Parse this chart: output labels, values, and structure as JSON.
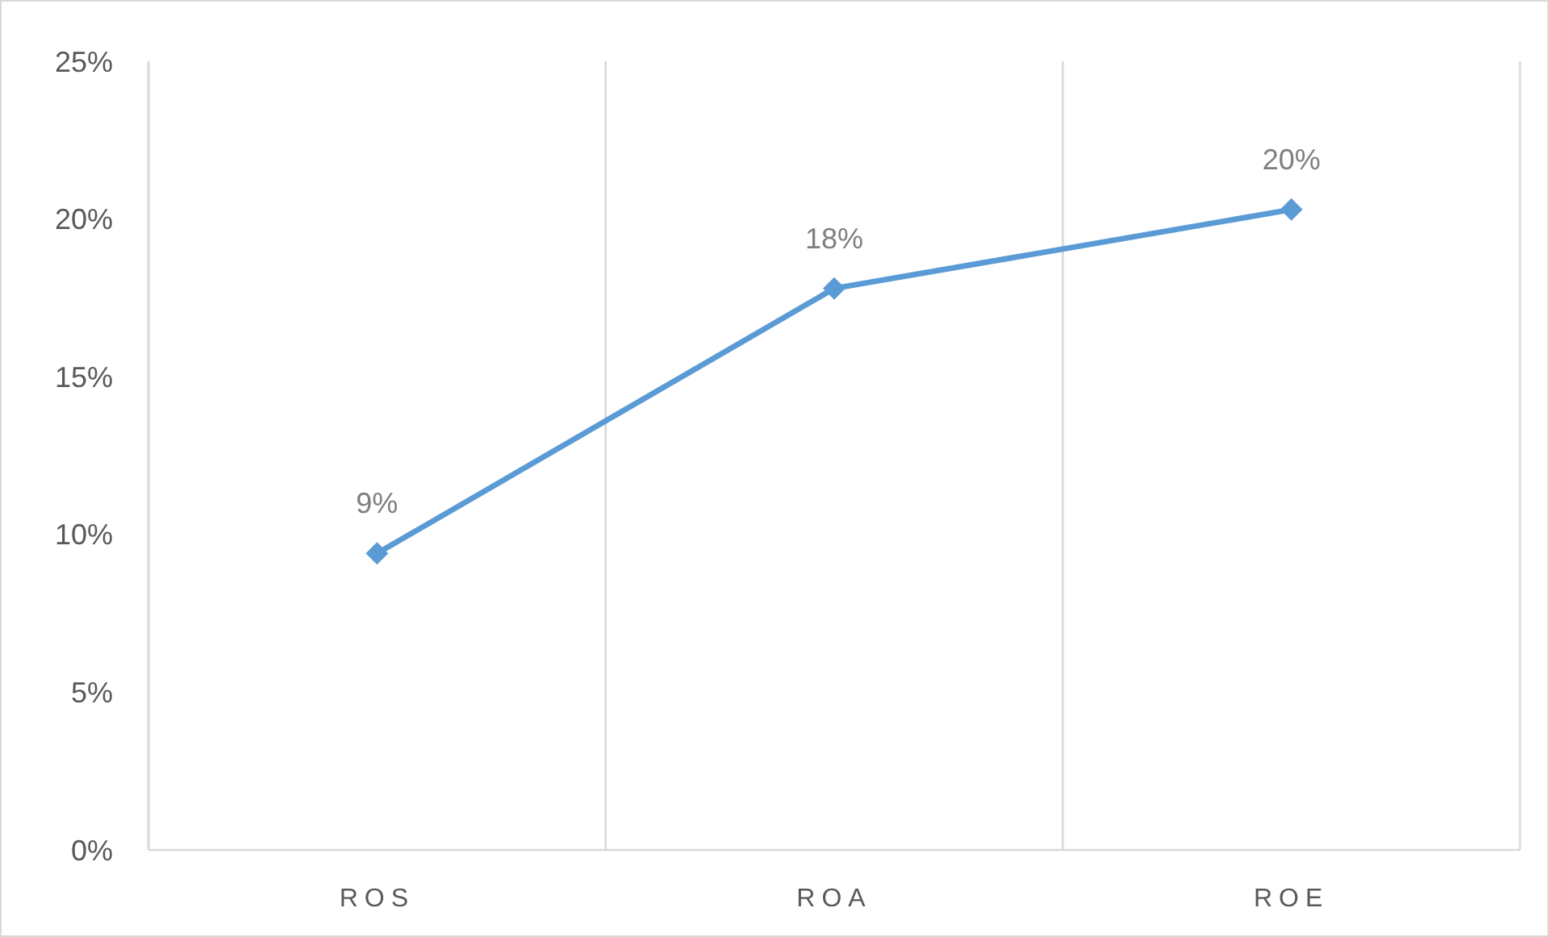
{
  "chart_data": {
    "type": "line",
    "categories": [
      "ROS",
      "ROA",
      "ROE"
    ],
    "series": [
      {
        "color": "#5b9bd5",
        "values": [
          9.4,
          17.8,
          20.3
        ],
        "value_labels": [
          "9%",
          "18%",
          "20%"
        ]
      }
    ],
    "ylim": [
      0,
      25
    ],
    "yticks": [
      {
        "value": 0,
        "label": "0%"
      },
      {
        "value": 5,
        "label": "5%"
      },
      {
        "value": 10,
        "label": "10%"
      },
      {
        "value": 15,
        "label": "15%"
      },
      {
        "value": 20,
        "label": "20%"
      },
      {
        "value": 25,
        "label": "25%"
      }
    ],
    "grid": "x",
    "marker": "diamond",
    "line_style": "solid"
  }
}
